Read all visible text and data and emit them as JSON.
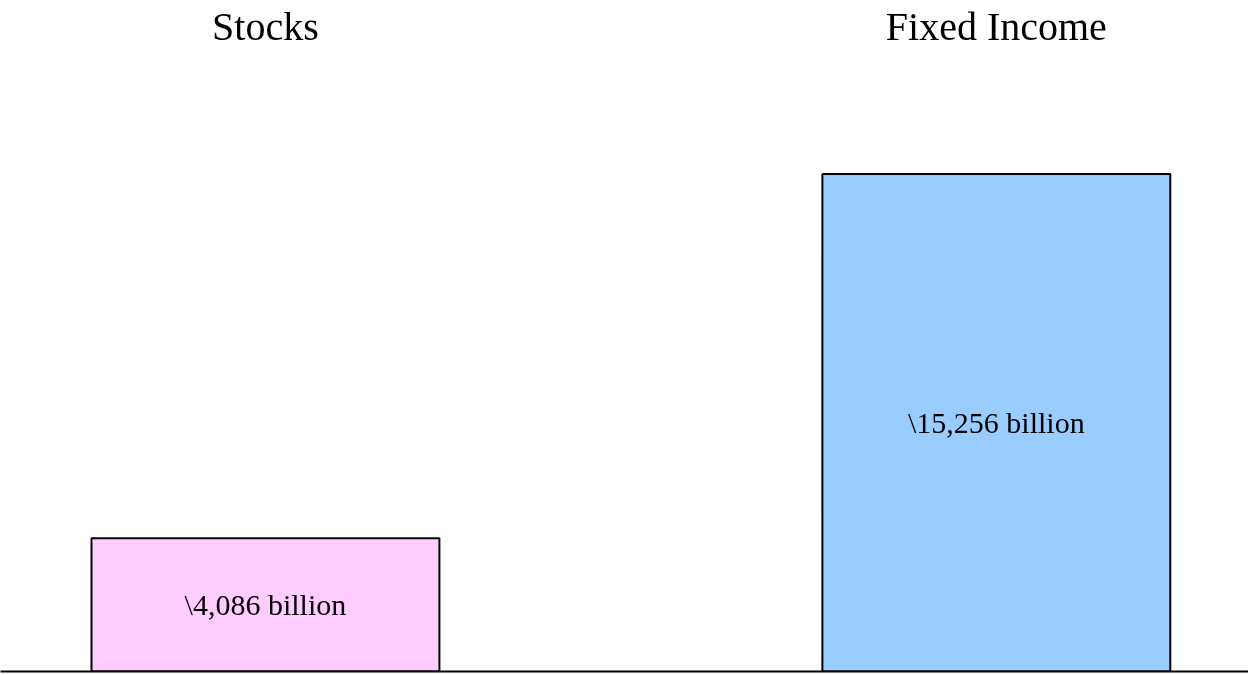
{
  "chart_data": {
    "type": "bar",
    "categories": [
      "Stocks",
      "Fixed Income"
    ],
    "values": [
      4086,
      15256
    ],
    "colors": [
      "#ffccff",
      "#99ccff"
    ],
    "value_labels": [
      "\\4,086 billion",
      "\\15,256 billion"
    ],
    "tick_labels": "x",
    "grid": false
  }
}
